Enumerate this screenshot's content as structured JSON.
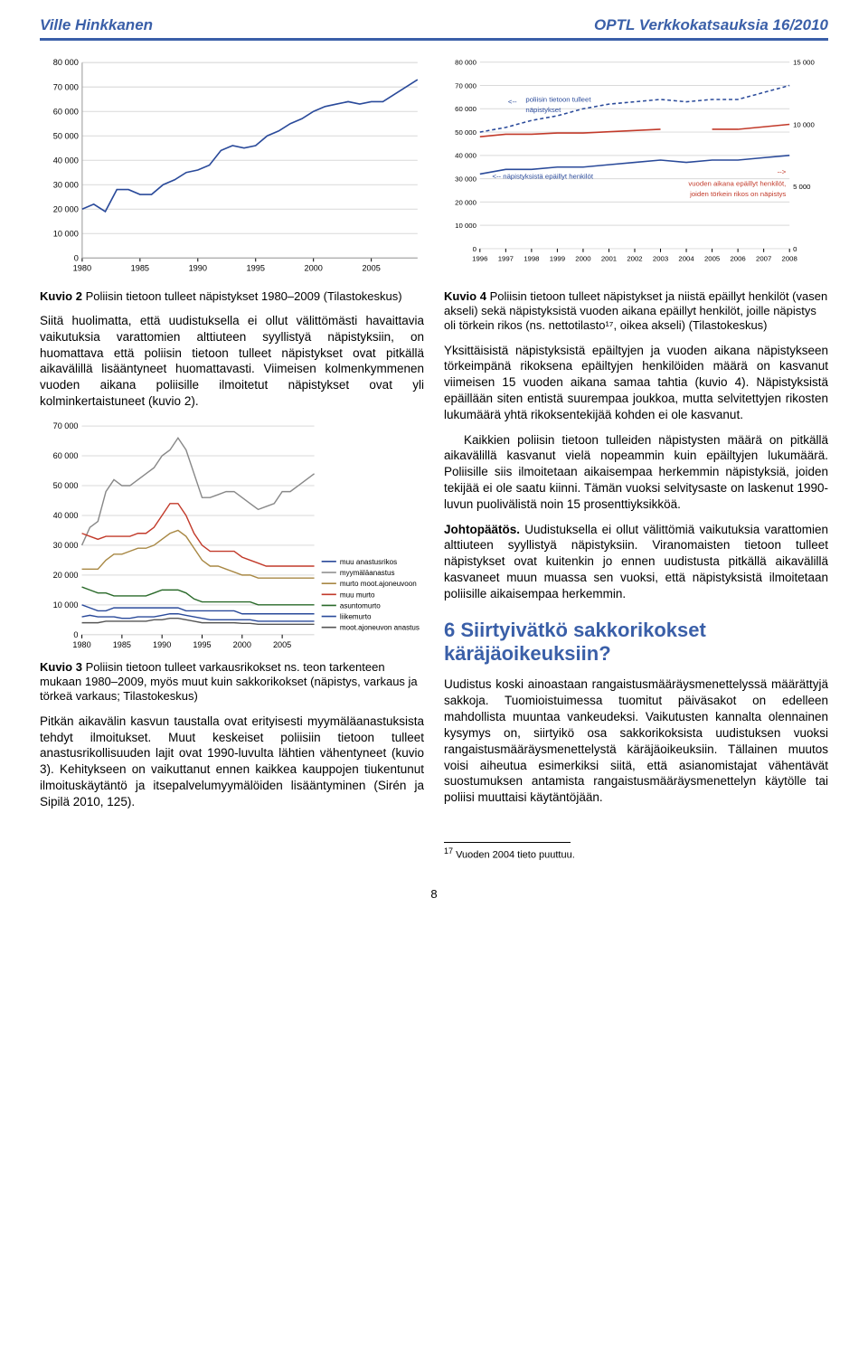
{
  "header": {
    "author": "Ville Hinkkanen",
    "publication": "OPTL Verkkokatsauksia 16/2010"
  },
  "chart2": {
    "type": "line",
    "x_ticks": [
      "1980",
      "1985",
      "1990",
      "1995",
      "2000",
      "2005"
    ],
    "y_ticks": [
      "0",
      "10 000",
      "20 000",
      "30 000",
      "40 000",
      "50 000",
      "60 000",
      "70 000",
      "80 000"
    ],
    "ylim": [
      0,
      80000
    ],
    "bg": "#ffffff",
    "grid": "#d9d9d9",
    "line_color": "#2a4a9a",
    "line_width": 1.6,
    "label_fontsize": 9,
    "values": [
      20000,
      22000,
      19000,
      28000,
      28000,
      26000,
      26000,
      30000,
      32000,
      35000,
      36000,
      38000,
      44000,
      46000,
      45000,
      46000,
      50000,
      52000,
      55000,
      57000,
      60000,
      62000,
      63000,
      64000,
      63000,
      64000,
      64000,
      67000,
      70000,
      73000
    ]
  },
  "chart4": {
    "type": "line-dual-axis",
    "x_ticks": [
      "1996",
      "1997",
      "1998",
      "1999",
      "2000",
      "2001",
      "2002",
      "2003",
      "2004",
      "2005",
      "2006",
      "2007",
      "2008"
    ],
    "y_left_ticks": [
      "0",
      "10 000",
      "20 000",
      "30 000",
      "40 000",
      "50 000",
      "60 000",
      "70 000",
      "80 000"
    ],
    "y_right_ticks": [
      "0",
      "5 000",
      "10 000",
      "15 000"
    ],
    "ylim_left": [
      0,
      80000
    ],
    "ylim_right": [
      0,
      15000
    ],
    "bg": "#ffffff",
    "grid": "#d9d9d9",
    "label_fontsize": 8,
    "series": [
      {
        "name": "poliisin_tietoon",
        "label": "poliisin tietoon tulleet näpistykset",
        "color": "#2a4a9a",
        "dash": "4 3",
        "width": 1.6,
        "axis": "left",
        "values": [
          50000,
          52000,
          55000,
          57000,
          60000,
          62000,
          63000,
          64000,
          63000,
          64000,
          64000,
          67000,
          70000
        ]
      },
      {
        "name": "napistyksista_epaillyt",
        "label": "näpistyksistä epäillyt henkilöt",
        "color": "#2a4a9a",
        "dash": "",
        "width": 1.6,
        "axis": "left",
        "values": [
          32000,
          34000,
          34000,
          35000,
          35000,
          36000,
          37000,
          38000,
          37000,
          38000,
          38000,
          39000,
          40000
        ]
      },
      {
        "name": "vuoden_aikana_epaillyt",
        "label": "vuoden aikana epäillyt henkilöt, joiden törkein rikos on näpistys",
        "color": "#c23a2a",
        "dash": "",
        "width": 1.6,
        "axis": "right",
        "values": [
          9000,
          9200,
          9200,
          9300,
          9300,
          9400,
          9500,
          9600,
          null,
          9600,
          9600,
          9800,
          10000
        ]
      }
    ],
    "annotations": {
      "top_left": "poliisin tietoon tulleet näpistykset",
      "mid_left": "<-- näpistyksistä epäillyt henkilöt",
      "right": "vuoden aikana epäillyt henkilöt, joiden törkein rikos on näpistys"
    },
    "annotation_colors": {
      "left": "#2a4a9a",
      "right": "#c23a2a"
    }
  },
  "chart3": {
    "type": "line-stacked",
    "x_ticks": [
      "1980",
      "1985",
      "1990",
      "1995",
      "2000",
      "2005"
    ],
    "y_ticks": [
      "0",
      "10 000",
      "20 000",
      "30 000",
      "40 000",
      "50 000",
      "60 000",
      "70 000"
    ],
    "ylim": [
      0,
      70000
    ],
    "bg": "#ffffff",
    "grid": "#d9d9d9",
    "label_fontsize": 9,
    "legend": [
      "muu anastusrikos",
      "myymäläanastus",
      "murto moot.ajoneuvoon",
      "muu murto",
      "asuntomurto",
      "liikemurto",
      "moot.ajoneuvon anastus"
    ],
    "legend_colors": [
      "#2a4a9a",
      "#888888",
      "#a88844",
      "#c23a2a",
      "#2a6a2a",
      "#2a4a9a",
      "#555555"
    ],
    "series": [
      {
        "color": "#888888",
        "width": 1.4,
        "values": [
          30000,
          36000,
          38000,
          48000,
          52000,
          50000,
          50000,
          52000,
          54000,
          56000,
          60000,
          62000,
          66000,
          62000,
          54000,
          46000,
          46000,
          47000,
          48000,
          48000,
          46000,
          44000,
          42000,
          43000,
          44000,
          48000,
          48000,
          50000,
          52000,
          54000
        ]
      },
      {
        "color": "#a88844",
        "width": 1.4,
        "values": [
          22000,
          22000,
          22000,
          25000,
          27000,
          27000,
          28000,
          29000,
          29000,
          30000,
          32000,
          34000,
          35000,
          33000,
          29000,
          25000,
          23000,
          23000,
          22000,
          21000,
          20000,
          20000,
          19000,
          19000,
          19000,
          19000,
          19000,
          19000,
          19000,
          19000
        ]
      },
      {
        "color": "#c23a2a",
        "width": 1.4,
        "values": [
          34000,
          33000,
          32000,
          33000,
          33000,
          33000,
          33000,
          34000,
          34000,
          36000,
          40000,
          44000,
          44000,
          40000,
          34000,
          30000,
          28000,
          28000,
          28000,
          28000,
          26000,
          25000,
          24000,
          23000,
          23000,
          23000,
          23000,
          23000,
          23000,
          23000
        ]
      },
      {
        "color": "#2a4a9a",
        "width": 1.4,
        "values": [
          10000,
          9000,
          8000,
          8000,
          9000,
          9000,
          9000,
          9000,
          9000,
          9000,
          9000,
          9000,
          9000,
          8000,
          8000,
          8000,
          8000,
          8000,
          8000,
          8000,
          7000,
          7000,
          7000,
          7000,
          7000,
          7000,
          7000,
          7000,
          7000,
          7000
        ]
      },
      {
        "color": "#2a6a2a",
        "width": 1.4,
        "values": [
          16000,
          15000,
          14000,
          14000,
          13000,
          13000,
          13000,
          13000,
          13000,
          14000,
          15000,
          15000,
          15000,
          14000,
          12000,
          11000,
          11000,
          11000,
          11000,
          11000,
          11000,
          11000,
          10000,
          10000,
          10000,
          10000,
          10000,
          10000,
          10000,
          10000
        ]
      },
      {
        "color": "#2a4a9a",
        "width": 1.4,
        "values": [
          6000,
          6500,
          6000,
          6000,
          6000,
          5500,
          5500,
          6000,
          6000,
          6000,
          6500,
          7000,
          7000,
          6500,
          6000,
          5500,
          5000,
          5000,
          5000,
          5000,
          5000,
          5000,
          4500,
          4500,
          4500,
          4500,
          4500,
          4500,
          4500,
          4500
        ]
      },
      {
        "color": "#555555",
        "width": 1.4,
        "values": [
          4000,
          4000,
          4000,
          4500,
          4500,
          4500,
          4500,
          4500,
          4500,
          5000,
          5000,
          5500,
          5500,
          5000,
          4500,
          4000,
          4000,
          4000,
          4000,
          4000,
          3800,
          3800,
          3500,
          3500,
          3500,
          3500,
          3500,
          3500,
          3500,
          3500
        ]
      }
    ]
  },
  "captions": {
    "k2": {
      "label": "Kuvio 2",
      "text": "Poliisin tietoon tulleet näpistykset 1980–2009 (Tilastokeskus)"
    },
    "k3": {
      "label": "Kuvio 3",
      "text": "Poliisin tietoon tulleet varkausrikokset ns. teon tarkenteen mukaan 1980–2009, myös muut kuin sakkorikokset (näpistys, varkaus ja törkeä varkaus; Tilastokeskus)"
    },
    "k4": {
      "label": "Kuvio 4",
      "text": "Poliisin tietoon tulleet näpistykset ja niistä epäillyt henkilöt (vasen akseli) sekä näpistyksistä vuoden aikana epäillyt henkilöt, joille näpistys oli törkein rikos (ns. nettotilasto¹⁷, oikea akseli) (Tilastokeskus)"
    }
  },
  "left_col": {
    "p1": "Siitä huolimatta, että uudistuksella ei ollut välittömästi havaittavia vaikutuksia varattomien alttiuteen syyllistyä näpistyksiin, on huomattava että poliisin tietoon tulleet näpistykset ovat pitkällä aikavälillä lisääntyneet huomattavasti. Viimeisen kolmenkymmenen vuoden aikana poliisille ilmoitetut näpistykset ovat yli kolminkertaistuneet (kuvio 2).",
    "p2": "Pitkän aikavälin kasvun taustalla ovat erityisesti myymäläanastuksista tehdyt ilmoitukset. Muut keskeiset poliisiin tietoon tulleet anastusrikollisuuden lajit ovat 1990-luvulta lähtien vähentyneet (kuvio 3). Kehitykseen on vaikuttanut ennen kaikkea kauppojen tiukentunut ilmoituskäytäntö ja itsepalvelumyymälöiden lisääntyminen (Sirén ja Sipilä 2010, 125)."
  },
  "right_col": {
    "p1": "Yksittäisistä näpistyksistä epäiltyjen ja vuoden aikana näpistykseen törkeimpänä rikoksena epäiltyjen henkilöiden määrä on kasvanut viimeisen 15 vuoden aikana samaa tahtia (kuvio 4). Näpistyksistä epäillään siten entistä suurempaa joukkoa, mutta selvitettyjen rikosten lukumäärä yhtä rikoksentekijää kohden ei ole kasvanut.",
    "p2": "Kaikkien poliisin tietoon tulleiden näpistysten määrä on pitkällä aikavälillä kasvanut vielä nopeammin kuin epäiltyjen lukumäärä. Poliisille siis ilmoitetaan aikaisempaa herkemmin näpistyksiä, joiden tekijää ei ole saatu kiinni. Tämän vuoksi selvitysaste on laskenut 1990-luvun puolivälistä noin 15 prosenttiyksikköä.",
    "p3_lead": "Johtopäätös.",
    "p3": " Uudistuksella ei ollut välittömiä vaikutuksia varattomien alttiuteen syyllistyä näpistyksiin. Viranomaisten tietoon tulleet näpistykset ovat kuitenkin jo ennen uudistusta pitkällä aikavälillä kasvaneet muun muassa sen vuoksi, että näpistyksistä ilmoitetaan poliisille aikaisempaa herkemmin.",
    "section_title": "6  Siirtyivätkö sakkorikokset käräjäoikeuksiin?",
    "p4": "Uudistus koski ainoastaan rangaistusmääräysmenettelyssä määrättyjä sakkoja. Tuomioistuimessa tuomitut päiväsakot on edelleen mahdollista muuntaa vankeudeksi. Vaikutusten kannalta olennainen kysymys on, siirtyikö osa sakkorikoksista uudistuksen vuoksi rangaistusmääräysmenettelystä käräjäoikeuksiin. Tällainen muutos voisi aiheutua esimerkiksi siitä, että asianomistajat vähentävät suostumuksen antamista rangaistusmääräysmenettelyn käytölle tai poliisi muuttaisi käytäntöjään."
  },
  "footnote": {
    "num": "17",
    "text": "Vuoden 2004 tieto puuttuu."
  },
  "pagenum": "8"
}
